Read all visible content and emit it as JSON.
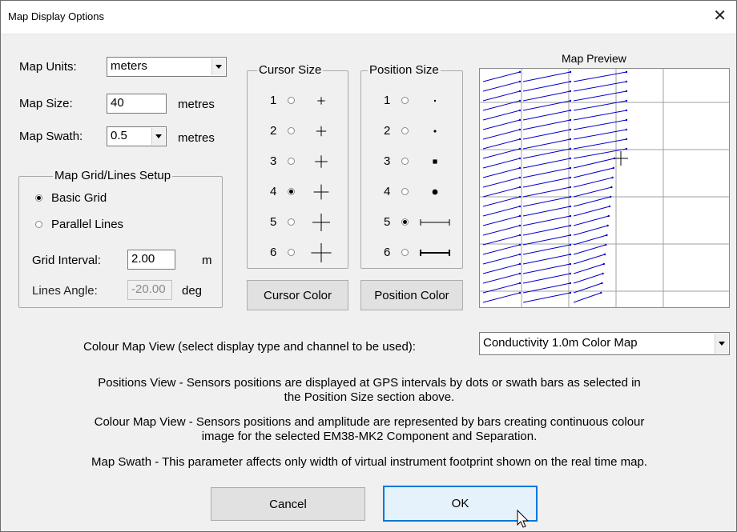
{
  "window": {
    "title": "Map Display Options",
    "close_glyph": "✕"
  },
  "left": {
    "map_units_label": "Map Units:",
    "map_units_value": "meters",
    "map_size_label": "Map Size:",
    "map_size_value": "40",
    "map_size_unit": "metres",
    "map_swath_label": "Map Swath:",
    "map_swath_value": "0.5",
    "map_swath_unit": "metres"
  },
  "grid_setup": {
    "title": "Map Grid/Lines Setup",
    "basic_grid": "Basic Grid",
    "parallel_lines": "Parallel Lines",
    "selected": "Basic Grid",
    "grid_interval_label": "Grid Interval:",
    "grid_interval_value": "2.00",
    "grid_interval_unit": "m",
    "lines_angle_label": "Lines Angle:",
    "lines_angle_value": "-20.00",
    "lines_angle_unit": "deg"
  },
  "cursor_size": {
    "title": "Cursor Size",
    "options": [
      "1",
      "2",
      "3",
      "4",
      "5",
      "6"
    ],
    "selected": "4",
    "button": "Cursor Color"
  },
  "position_size": {
    "title": "Position Size",
    "options": [
      "1",
      "2",
      "3",
      "4",
      "5",
      "6"
    ],
    "selected": "5",
    "button": "Position Color"
  },
  "preview": {
    "title": "Map Preview",
    "line_color": "#0000cc",
    "grid_color": "#a0a0a0"
  },
  "colour_map": {
    "label": "Colour Map View (select display type and channel to be used):",
    "value": "Conductivity 1.0m Color Map"
  },
  "descriptions": {
    "positions_1": "Positions View - Sensors positions are displayed at GPS intervals by dots or swath bars as selected in",
    "positions_2": "the Position Size section above.",
    "colour_1": "Colour Map View - Sensors positions and amplitude are represented by bars creating continuous colour",
    "colour_2": "image for the selected EM38-MK2 Component and Separation.",
    "swath": "Map Swath - This parameter affects only width of virtual instrument footprint shown on the real time map."
  },
  "buttons": {
    "cancel": "Cancel",
    "ok": "OK"
  }
}
